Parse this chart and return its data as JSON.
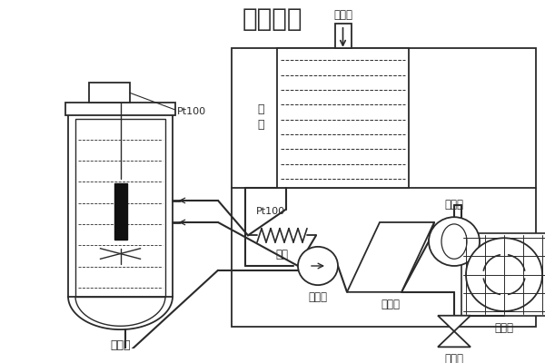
{
  "title": "工作原理",
  "title_fontsize": 20,
  "background_color": "#ffffff",
  "line_color": "#2a2a2a",
  "labels": {
    "reactor": "反应器",
    "pt100_reactor": "Pt100",
    "liquid_level_1": "液",
    "liquid_level_2": "位",
    "liquid_inlet": "加液口",
    "heating": "加热",
    "pt100_heat": "Pt100",
    "circulation_pump": "循环泵",
    "heat_exchanger": "换热器",
    "expansion_valve": "节流阀",
    "compressor": "压缩机",
    "condenser": "冷凝器"
  }
}
